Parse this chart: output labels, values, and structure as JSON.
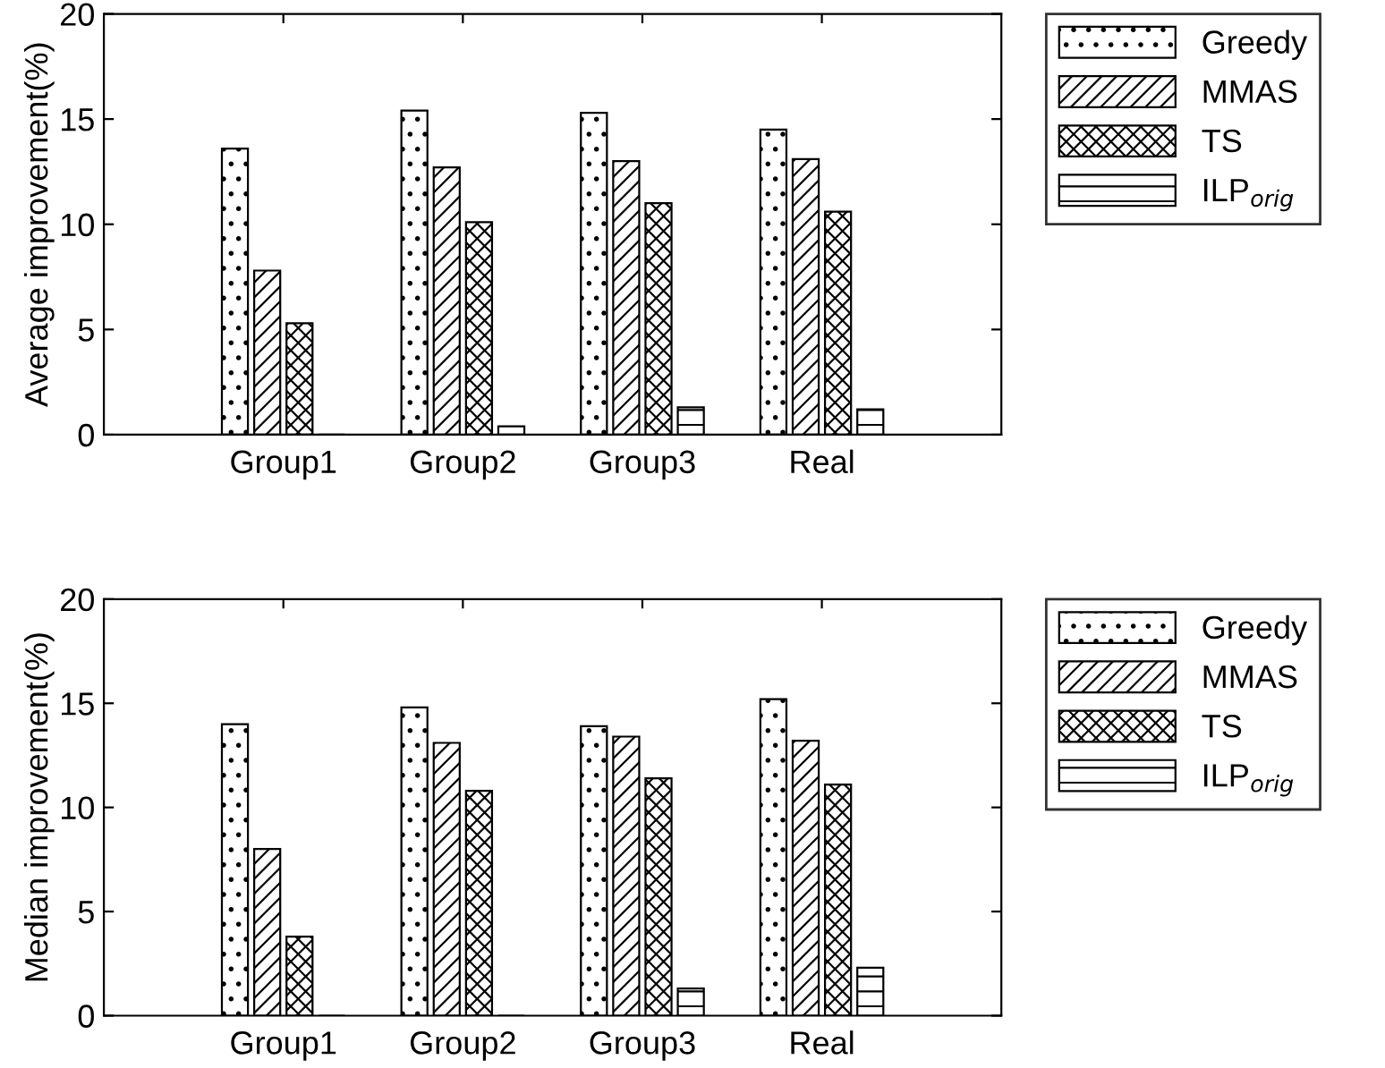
{
  "chart_data": [
    {
      "type": "bar",
      "ylabel": "Average improvement(%)",
      "categories": [
        "Group1",
        "Group2",
        "Group3",
        "Real"
      ],
      "ylim": [
        0,
        20
      ],
      "yticks": [
        0,
        5,
        10,
        15,
        20
      ],
      "legend": "right",
      "grid": false,
      "series": [
        {
          "name": "Greedy",
          "color": "#000000",
          "values": [
            13.6,
            15.4,
            15.3,
            14.5
          ]
        },
        {
          "name": "MMAS",
          "color": "#000000",
          "values": [
            7.8,
            12.7,
            13.0,
            13.1
          ]
        },
        {
          "name": "TS",
          "color": "#000000",
          "values": [
            5.3,
            10.1,
            11.0,
            10.6
          ]
        },
        {
          "name": "ILP$_{orig}$",
          "color": "#000000",
          "values": [
            0,
            0.4,
            1.3,
            1.2
          ]
        }
      ]
    },
    {
      "type": "bar",
      "ylabel": "Median improvement(%)",
      "categories": [
        "Group1",
        "Group2",
        "Group3",
        "Real"
      ],
      "ylim": [
        0,
        20
      ],
      "yticks": [
        0,
        5,
        10,
        15,
        20
      ],
      "legend": "right",
      "grid": false,
      "series": [
        {
          "name": "Greedy",
          "color": "#000000",
          "values": [
            14.0,
            14.8,
            13.9,
            15.2
          ]
        },
        {
          "name": "MMAS",
          "color": "#000000",
          "values": [
            8.0,
            13.1,
            13.4,
            13.2
          ]
        },
        {
          "name": "TS",
          "color": "#000000",
          "values": [
            3.8,
            10.8,
            11.4,
            11.1
          ]
        },
        {
          "name": "ILP$_{orig}$",
          "color": "#000000",
          "values": [
            0,
            0,
            1.3,
            2.3
          ]
        }
      ]
    }
  ]
}
